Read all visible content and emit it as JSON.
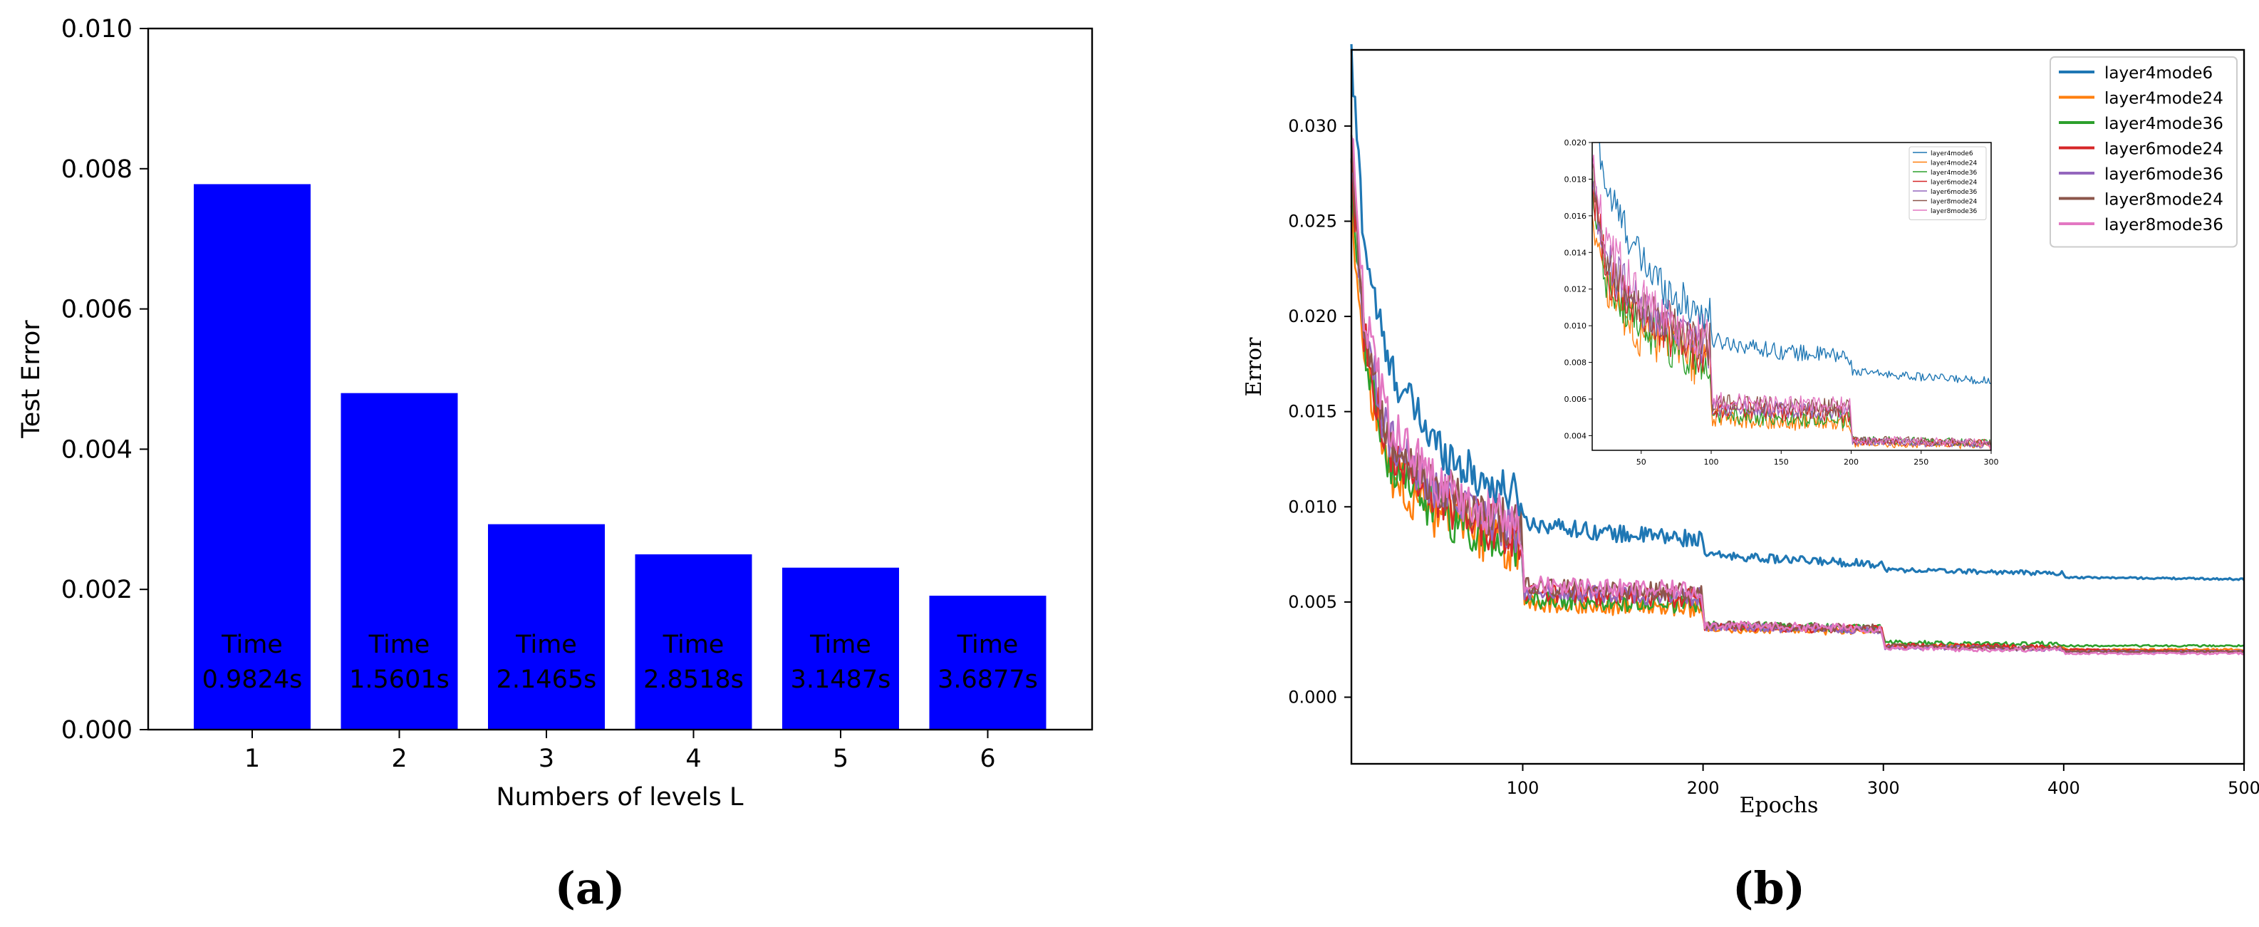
{
  "chart_data": [
    {
      "type": "bar",
      "panel_label": "(a)",
      "title": "",
      "xlabel": "Numbers of levels L",
      "ylabel": "Test Error",
      "categories": [
        "1",
        "2",
        "3",
        "4",
        "5",
        "6"
      ],
      "values": [
        0.00778,
        0.0048,
        0.00293,
        0.0025,
        0.00231,
        0.00191
      ],
      "bar_annotations": [
        {
          "line1": "Time",
          "line2": "0.9824s"
        },
        {
          "line1": "Time",
          "line2": "1.5601s"
        },
        {
          "line1": "Time",
          "line2": "2.1465s"
        },
        {
          "line1": "Time",
          "line2": "2.8518s"
        },
        {
          "line1": "Time",
          "line2": "3.1487s"
        },
        {
          "line1": "Time",
          "line2": "3.6877s"
        }
      ],
      "ylim": [
        0,
        0.01
      ],
      "yticks": [
        "0.000",
        "0.002",
        "0.004",
        "0.006",
        "0.008",
        "0.010"
      ],
      "bar_color": "#0000ff",
      "grid": false
    },
    {
      "type": "line",
      "panel_label": "(b)",
      "title": "",
      "xlabel": "Epochs",
      "ylabel": "Error",
      "xlim": [
        5,
        500
      ],
      "ylim": [
        -0.0035,
        0.034
      ],
      "xticks": [
        "100",
        "200",
        "300",
        "400",
        "500"
      ],
      "yticks": [
        "0.000",
        "0.005",
        "0.010",
        "0.015",
        "0.020",
        "0.025",
        "0.030"
      ],
      "legend_position": "top-right",
      "grid": false,
      "series": [
        {
          "name": "layer4mode6",
          "color": "#1f77b4",
          "values_at_breakpoints": [
            [
              5,
              0.0335
            ],
            [
              12,
              0.024
            ],
            [
              25,
              0.0175
            ],
            [
              50,
              0.0135
            ],
            [
              75,
              0.0115
            ],
            [
              99,
              0.0105
            ],
            [
              101,
              0.0092
            ],
            [
              150,
              0.0086
            ],
            [
              199,
              0.0083
            ],
            [
              201,
              0.0075
            ],
            [
              250,
              0.0072
            ],
            [
              299,
              0.007
            ],
            [
              301,
              0.0067
            ],
            [
              350,
              0.0066
            ],
            [
              399,
              0.0065
            ],
            [
              401,
              0.0063
            ],
            [
              500,
              0.0062
            ]
          ]
        },
        {
          "name": "layer4mode24",
          "color": "#ff7f0e",
          "values_at_breakpoints": [
            [
              5,
              0.026
            ],
            [
              12,
              0.0175
            ],
            [
              25,
              0.012
            ],
            [
              50,
              0.0095
            ],
            [
              75,
              0.0085
            ],
            [
              99,
              0.0077
            ],
            [
              101,
              0.005
            ],
            [
              150,
              0.0048
            ],
            [
              199,
              0.0047
            ],
            [
              201,
              0.0036
            ],
            [
              250,
              0.0035
            ],
            [
              299,
              0.0035
            ],
            [
              301,
              0.0027
            ],
            [
              350,
              0.0027
            ],
            [
              399,
              0.0026
            ],
            [
              401,
              0.0025
            ],
            [
              500,
              0.0025
            ]
          ]
        },
        {
          "name": "layer4mode36",
          "color": "#2ca02c",
          "values_at_breakpoints": [
            [
              5,
              0.027
            ],
            [
              12,
              0.0185
            ],
            [
              25,
              0.0125
            ],
            [
              50,
              0.0098
            ],
            [
              75,
              0.0088
            ],
            [
              99,
              0.008
            ],
            [
              101,
              0.0052
            ],
            [
              150,
              0.005
            ],
            [
              199,
              0.0049
            ],
            [
              201,
              0.0038
            ],
            [
              250,
              0.0037
            ],
            [
              299,
              0.0036
            ],
            [
              301,
              0.0029
            ],
            [
              350,
              0.0028
            ],
            [
              399,
              0.0028
            ],
            [
              401,
              0.0027
            ],
            [
              500,
              0.0027
            ]
          ]
        },
        {
          "name": "layer6mode24",
          "color": "#d62728",
          "values_at_breakpoints": [
            [
              5,
              0.028
            ],
            [
              12,
              0.019
            ],
            [
              25,
              0.013
            ],
            [
              50,
              0.0105
            ],
            [
              75,
              0.0092
            ],
            [
              99,
              0.0085
            ],
            [
              101,
              0.0055
            ],
            [
              150,
              0.0053
            ],
            [
              199,
              0.0052
            ],
            [
              201,
              0.0037
            ],
            [
              250,
              0.0036
            ],
            [
              299,
              0.0036
            ],
            [
              301,
              0.0027
            ],
            [
              350,
              0.0027
            ],
            [
              399,
              0.0026
            ],
            [
              401,
              0.0025
            ],
            [
              500,
              0.0024
            ]
          ]
        },
        {
          "name": "layer6mode36",
          "color": "#9467bd",
          "values_at_breakpoints": [
            [
              5,
              0.0285
            ],
            [
              12,
              0.0195
            ],
            [
              25,
              0.0135
            ],
            [
              50,
              0.0108
            ],
            [
              75,
              0.0095
            ],
            [
              99,
              0.0088
            ],
            [
              101,
              0.0056
            ],
            [
              150,
              0.0054
            ],
            [
              199,
              0.0053
            ],
            [
              201,
              0.0037
            ],
            [
              250,
              0.0036
            ],
            [
              299,
              0.0035
            ],
            [
              301,
              0.0026
            ],
            [
              350,
              0.0026
            ],
            [
              399,
              0.0025
            ],
            [
              401,
              0.0024
            ],
            [
              500,
              0.0024
            ]
          ]
        },
        {
          "name": "layer8mode24",
          "color": "#8c564b",
          "values_at_breakpoints": [
            [
              5,
              0.029
            ],
            [
              12,
              0.02
            ],
            [
              25,
              0.014
            ],
            [
              50,
              0.0112
            ],
            [
              75,
              0.0098
            ],
            [
              99,
              0.009
            ],
            [
              101,
              0.0058
            ],
            [
              150,
              0.0056
            ],
            [
              199,
              0.0055
            ],
            [
              201,
              0.0038
            ],
            [
              250,
              0.0037
            ],
            [
              299,
              0.0036
            ],
            [
              301,
              0.0027
            ],
            [
              350,
              0.0026
            ],
            [
              399,
              0.0026
            ],
            [
              401,
              0.0024
            ],
            [
              500,
              0.0024
            ]
          ]
        },
        {
          "name": "layer8mode36",
          "color": "#e377c2",
          "values_at_breakpoints": [
            [
              5,
              0.03
            ],
            [
              12,
              0.0205
            ],
            [
              25,
              0.0145
            ],
            [
              50,
              0.0115
            ],
            [
              75,
              0.01
            ],
            [
              99,
              0.0092
            ],
            [
              101,
              0.006
            ],
            [
              150,
              0.0057
            ],
            [
              199,
              0.0056
            ],
            [
              201,
              0.0038
            ],
            [
              250,
              0.0037
            ],
            [
              299,
              0.0036
            ],
            [
              301,
              0.0026
            ],
            [
              350,
              0.0025
            ],
            [
              399,
              0.0025
            ],
            [
              401,
              0.0023
            ],
            [
              500,
              0.0023
            ]
          ]
        }
      ],
      "inset": {
        "xlim": [
          15,
          300
        ],
        "ylim": [
          0.0032,
          0.02
        ],
        "xticks": [
          "50",
          "100",
          "150",
          "200",
          "250",
          "300"
        ],
        "yticks": [
          "0.004",
          "0.006",
          "0.008",
          "0.010",
          "0.012",
          "0.014",
          "0.016",
          "0.018",
          "0.020"
        ],
        "legend_position": "top-right"
      }
    }
  ]
}
